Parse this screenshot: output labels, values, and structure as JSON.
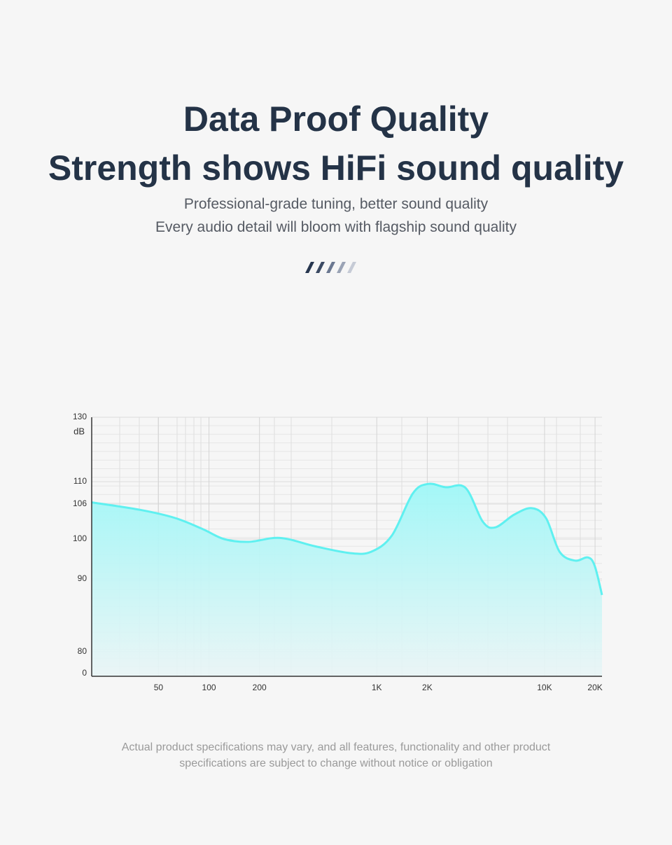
{
  "header": {
    "title_lines": [
      "Data Proof Quality",
      "Strength shows HiFi sound quality"
    ],
    "subtitle_lines": [
      "Professional-grade tuning, better sound quality",
      "Every audio detail will bloom with flagship sound quality"
    ]
  },
  "chart_data": {
    "type": "area",
    "y_label": "dB",
    "x": [
      20,
      39,
      63,
      92,
      123,
      172,
      265,
      428,
      691,
      924,
      1230,
      1641,
      2029,
      2577,
      3380,
      4280,
      5090,
      6600,
      8390,
      10200,
      12300,
      15200,
      18100,
      19900,
      22000
    ],
    "series": [
      {
        "color": "#5ff0f0",
        "values": [
          106.3,
          105.0,
          103.6,
          101.7,
          100,
          99.3,
          100.2,
          98.2,
          96.5,
          96.8,
          100.6,
          107.9,
          109.6,
          109.0,
          108.9,
          103.0,
          102.0,
          104.2,
          105.3,
          103.6,
          96.8,
          94.6,
          95.4,
          93.3,
          87.8
        ]
      }
    ],
    "xlim": [
      20,
      22000
    ],
    "x_scale": "log",
    "xticks": [
      50,
      100,
      200,
      {
        "value": 1000,
        "label": "1K"
      },
      {
        "value": 2000,
        "label": "2K"
      },
      {
        "value": 10000,
        "label": "10K"
      },
      {
        "value": 20000,
        "label": "20K"
      }
    ],
    "ylim": [
      0,
      130
    ],
    "yticks": [
      0,
      80,
      90,
      100,
      106,
      110,
      130
    ],
    "grid": true
  },
  "footer": {
    "lines": [
      "Actual product specifications may vary, and all features, functionality and other product",
      "specifications are subject to change without notice or obligation"
    ]
  }
}
